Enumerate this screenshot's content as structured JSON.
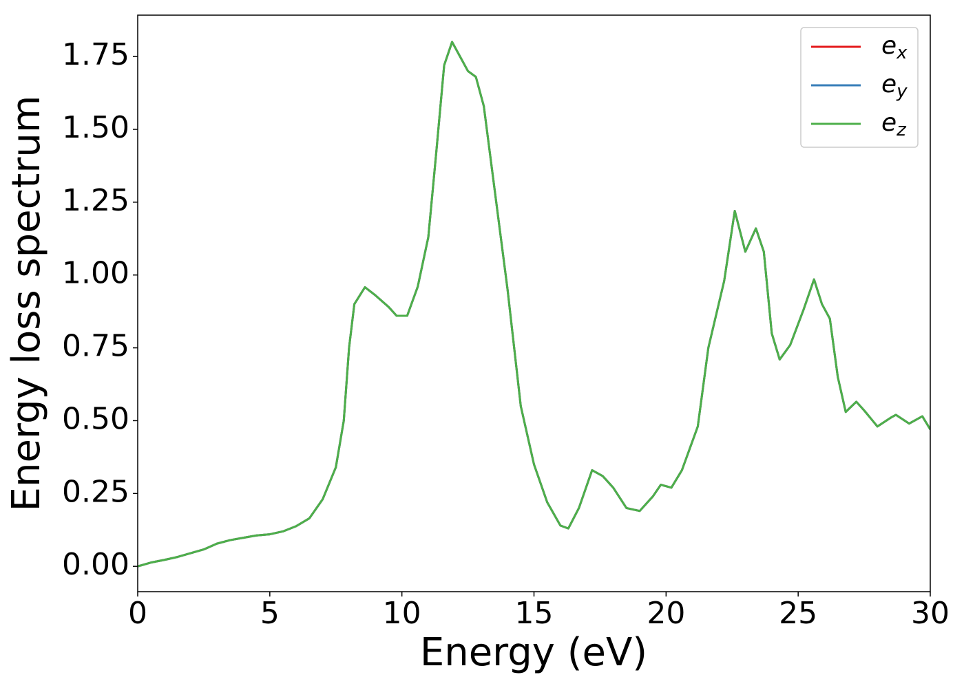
{
  "chart_data": {
    "type": "line",
    "xlabel": "Energy (eV)",
    "ylabel": "Energy loss spectrum",
    "x": [
      0,
      0.5,
      1,
      1.5,
      2,
      2.5,
      3,
      3.5,
      4,
      4.5,
      5,
      5.5,
      6,
      6.5,
      7,
      7.5,
      7.8,
      8,
      8.2,
      8.6,
      9,
      9.5,
      9.8,
      10.2,
      10.6,
      11,
      11.3,
      11.6,
      11.9,
      12.2,
      12.5,
      12.8,
      13.1,
      13.5,
      14,
      14.5,
      15,
      15.5,
      16,
      16.3,
      16.7,
      17.2,
      17.6,
      18,
      18.5,
      19,
      19.5,
      19.8,
      20.2,
      20.6,
      21.2,
      21.6,
      22.2,
      22.6,
      23,
      23.4,
      23.7,
      24,
      24.3,
      24.7,
      25.2,
      25.6,
      25.9,
      26.2,
      26.5,
      26.8,
      27.2,
      27.5,
      28,
      28.5,
      28.7,
      29.2,
      29.7,
      30
    ],
    "series": [
      {
        "name": "ex",
        "color": "#e41a1c",
        "values": [
          0,
          0.013,
          0.022,
          0.032,
          0.045,
          0.058,
          0.078,
          0.09,
          0.098,
          0.106,
          0.11,
          0.12,
          0.138,
          0.165,
          0.23,
          0.34,
          0.5,
          0.75,
          0.9,
          0.958,
          0.93,
          0.89,
          0.86,
          0.86,
          0.96,
          1.13,
          1.42,
          1.72,
          1.8,
          1.75,
          1.7,
          1.68,
          1.58,
          1.3,
          0.95,
          0.55,
          0.35,
          0.22,
          0.14,
          0.13,
          0.2,
          0.33,
          0.31,
          0.27,
          0.2,
          0.19,
          0.24,
          0.28,
          0.27,
          0.33,
          0.48,
          0.75,
          0.98,
          1.22,
          1.08,
          1.16,
          1.08,
          0.8,
          0.71,
          0.76,
          0.88,
          0.985,
          0.9,
          0.85,
          0.65,
          0.53,
          0.565,
          0.535,
          0.48,
          0.51,
          0.52,
          0.49,
          0.515,
          0.47
        ]
      },
      {
        "name": "ey",
        "color": "#377eb8",
        "values": [
          0,
          0.013,
          0.022,
          0.032,
          0.045,
          0.058,
          0.078,
          0.09,
          0.098,
          0.106,
          0.11,
          0.12,
          0.138,
          0.165,
          0.23,
          0.34,
          0.5,
          0.75,
          0.9,
          0.958,
          0.93,
          0.89,
          0.86,
          0.86,
          0.96,
          1.13,
          1.42,
          1.72,
          1.8,
          1.75,
          1.7,
          1.68,
          1.58,
          1.3,
          0.95,
          0.55,
          0.35,
          0.22,
          0.14,
          0.13,
          0.2,
          0.33,
          0.31,
          0.27,
          0.2,
          0.19,
          0.24,
          0.28,
          0.27,
          0.33,
          0.48,
          0.75,
          0.98,
          1.22,
          1.08,
          1.16,
          1.08,
          0.8,
          0.71,
          0.76,
          0.88,
          0.985,
          0.9,
          0.85,
          0.65,
          0.53,
          0.565,
          0.535,
          0.48,
          0.51,
          0.52,
          0.49,
          0.515,
          0.47
        ]
      },
      {
        "name": "ez",
        "color": "#4daf4a",
        "values": [
          0,
          0.013,
          0.022,
          0.032,
          0.045,
          0.058,
          0.078,
          0.09,
          0.098,
          0.106,
          0.11,
          0.12,
          0.138,
          0.165,
          0.23,
          0.34,
          0.5,
          0.75,
          0.9,
          0.958,
          0.93,
          0.89,
          0.86,
          0.86,
          0.96,
          1.13,
          1.42,
          1.72,
          1.8,
          1.75,
          1.7,
          1.68,
          1.58,
          1.3,
          0.95,
          0.55,
          0.35,
          0.22,
          0.14,
          0.13,
          0.2,
          0.33,
          0.31,
          0.27,
          0.2,
          0.19,
          0.24,
          0.28,
          0.27,
          0.33,
          0.48,
          0.75,
          0.98,
          1.22,
          1.08,
          1.16,
          1.08,
          0.8,
          0.71,
          0.76,
          0.88,
          0.985,
          0.9,
          0.85,
          0.65,
          0.53,
          0.565,
          0.535,
          0.48,
          0.51,
          0.52,
          0.49,
          0.515,
          0.47
        ]
      }
    ],
    "xlim": [
      0,
      30
    ],
    "xticks": [
      0,
      5,
      10,
      15,
      20,
      25,
      30
    ],
    "ylim": [
      -0.087,
      1.892
    ],
    "yticks": [
      {
        "value": 0,
        "label": "0.00"
      },
      {
        "value": 0.25,
        "label": "0.25"
      },
      {
        "value": 0.5,
        "label": "0.50"
      },
      {
        "value": 0.75,
        "label": "0.75"
      },
      {
        "value": 1,
        "label": "1.00"
      },
      {
        "value": 1.25,
        "label": "1.25"
      },
      {
        "value": 1.5,
        "label": "1.50"
      },
      {
        "value": 1.75,
        "label": "1.75"
      }
    ],
    "legend": "upper right",
    "grid": false
  }
}
